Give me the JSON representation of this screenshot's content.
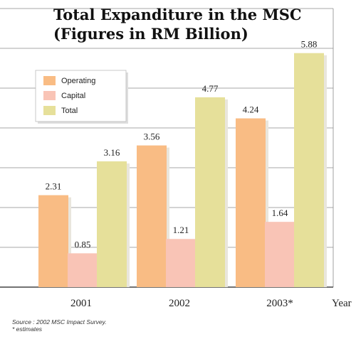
{
  "chart_data": {
    "type": "bar",
    "title_lines": [
      "Total Expanditure in the MSC",
      "(Figures in RM Billion)"
    ],
    "categories": [
      "2001",
      "2002",
      "2003*"
    ],
    "series": [
      {
        "name": "Operating",
        "values": [
          2.31,
          3.56,
          4.24
        ],
        "labels": [
          "2.31",
          "3.56",
          "4.24"
        ]
      },
      {
        "name": "Capital",
        "values": [
          0.85,
          1.21,
          1.64
        ],
        "labels": [
          "0.85",
          "1.21",
          "1.64"
        ]
      },
      {
        "name": "Total",
        "values": [
          3.16,
          4.77,
          5.88
        ],
        "labels": [
          "3.16",
          "4.77",
          "5.88"
        ]
      }
    ],
    "xlabel": "Year",
    "ylabel": "",
    "ylim": [
      0,
      7
    ],
    "grid": true,
    "legend_position": "top-left",
    "colors": {
      "Operating": "#f9bc84",
      "Capital": "#f9c4b6",
      "Total": "#e6e09a"
    }
  },
  "footnote": {
    "source": "Source : 2002 MSC Impact Survey.",
    "note": "* estimates"
  }
}
